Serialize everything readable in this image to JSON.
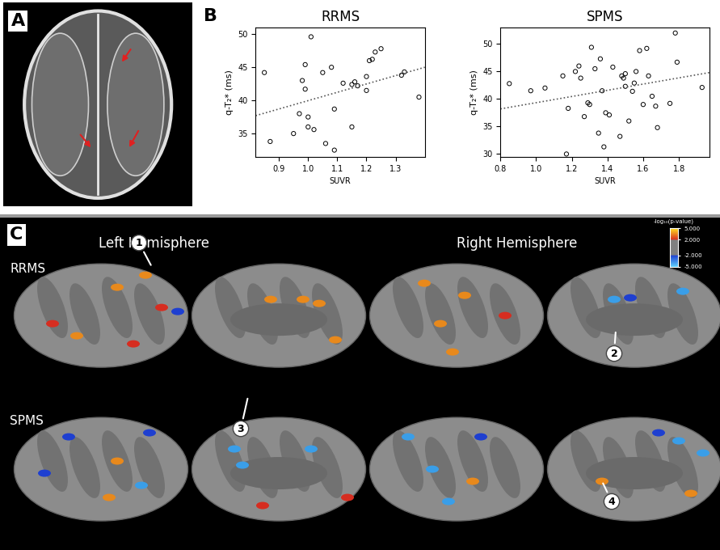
{
  "chart_data": [
    {
      "type": "scatter",
      "title": "RRMS",
      "x_label": "SUVR",
      "y_label": "q-T₂* (ms)",
      "x": [
        0.85,
        0.87,
        0.95,
        0.97,
        0.98,
        0.99,
        0.99,
        1.0,
        1.01,
        1.0,
        1.02,
        1.05,
        1.06,
        1.08,
        1.09,
        1.09,
        1.12,
        1.15,
        1.15,
        1.16,
        1.17,
        1.2,
        1.2,
        1.21,
        1.22,
        1.23,
        1.25,
        1.32,
        1.33,
        1.38
      ],
      "y": [
        44.2,
        33.8,
        35.0,
        38.0,
        43.0,
        45.4,
        41.7,
        36.0,
        49.6,
        37.5,
        35.6,
        44.2,
        33.5,
        45.0,
        32.5,
        38.7,
        42.6,
        36.0,
        42.4,
        42.8,
        42.2,
        41.5,
        43.6,
        46.0,
        46.2,
        47.3,
        47.8,
        43.8,
        44.3,
        40.5
      ],
      "trend_line": {
        "x": [
          0.82,
          1.4
        ],
        "y": [
          37.7,
          45.0
        ]
      },
      "color": "#000000",
      "marker": "o",
      "line_style": "dotted",
      "xlim": [
        0.82,
        1.4
      ],
      "ylim": [
        31.5,
        51
      ],
      "xticks": [
        0.9,
        1.0,
        1.1,
        1.2,
        1.3
      ],
      "yticks": [
        35,
        40,
        45,
        50
      ]
    },
    {
      "type": "scatter",
      "title": "SPMS",
      "x_label": "SUVR",
      "y_label": "q-T₂* (ms)",
      "x": [
        0.85,
        0.97,
        1.05,
        1.15,
        1.17,
        1.18,
        1.22,
        1.24,
        1.25,
        1.27,
        1.29,
        1.3,
        1.31,
        1.33,
        1.35,
        1.36,
        1.37,
        1.38,
        1.39,
        1.41,
        1.43,
        1.47,
        1.48,
        1.49,
        1.5,
        1.5,
        1.52,
        1.54,
        1.55,
        1.56,
        1.58,
        1.6,
        1.62,
        1.63,
        1.65,
        1.67,
        1.68,
        1.75,
        1.78,
        1.79,
        1.93
      ],
      "y": [
        42.8,
        41.5,
        42.0,
        44.2,
        30.0,
        38.3,
        45.0,
        46.0,
        43.8,
        36.8,
        39.3,
        39.0,
        49.4,
        45.5,
        33.8,
        47.3,
        41.5,
        31.3,
        37.5,
        37.1,
        45.8,
        33.2,
        44.2,
        43.8,
        44.6,
        42.3,
        36.0,
        41.4,
        42.9,
        45.0,
        48.8,
        39.0,
        49.2,
        44.2,
        40.5,
        38.7,
        34.8,
        39.2,
        52.0,
        46.7,
        42.1
      ],
      "trend_line": {
        "x": [
          0.8,
          1.97
        ],
        "y": [
          38.2,
          44.8
        ]
      },
      "color": "#000000",
      "marker": "o",
      "line_style": "dotted",
      "xlim": [
        0.8,
        1.97
      ],
      "ylim": [
        29.5,
        53
      ],
      "xticks": [
        0.8,
        1.0,
        1.2,
        1.4,
        1.6,
        1.8
      ],
      "yticks": [
        30,
        35,
        40,
        45,
        50
      ]
    }
  ],
  "panel_labels": [
    "A",
    "B",
    "C"
  ],
  "surface_maps": {
    "column_headers": [
      "Left Hemisphere",
      "Right Hemisphere"
    ],
    "rows": [
      "RRMS",
      "SPMS"
    ],
    "callouts": [
      "1",
      "2",
      "3",
      "4"
    ],
    "colorbar": {
      "title": "-log₁₀(p-value)",
      "ticks": [
        {
          "value": 5,
          "label": "5.000"
        },
        {
          "value": 2,
          "label": "2.000"
        },
        {
          "value": -2,
          "label": "-2.000"
        },
        {
          "value": -5,
          "label": "-5.000"
        }
      ]
    }
  }
}
